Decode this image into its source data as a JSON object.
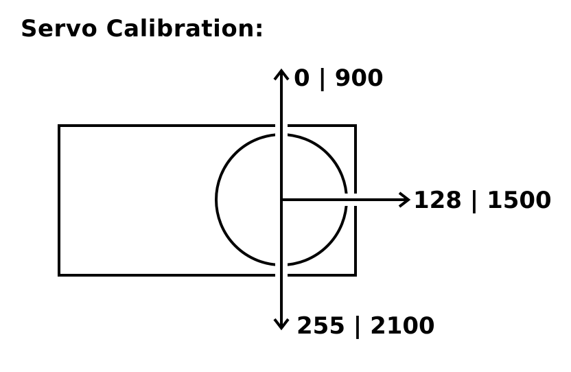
{
  "title": "Servo Calibration:",
  "labels": {
    "top": "0 | 900",
    "right": "128 | 1500",
    "bottom": "255 | 2100"
  },
  "colors": {
    "stroke": "#000000",
    "background": "#ffffff"
  }
}
